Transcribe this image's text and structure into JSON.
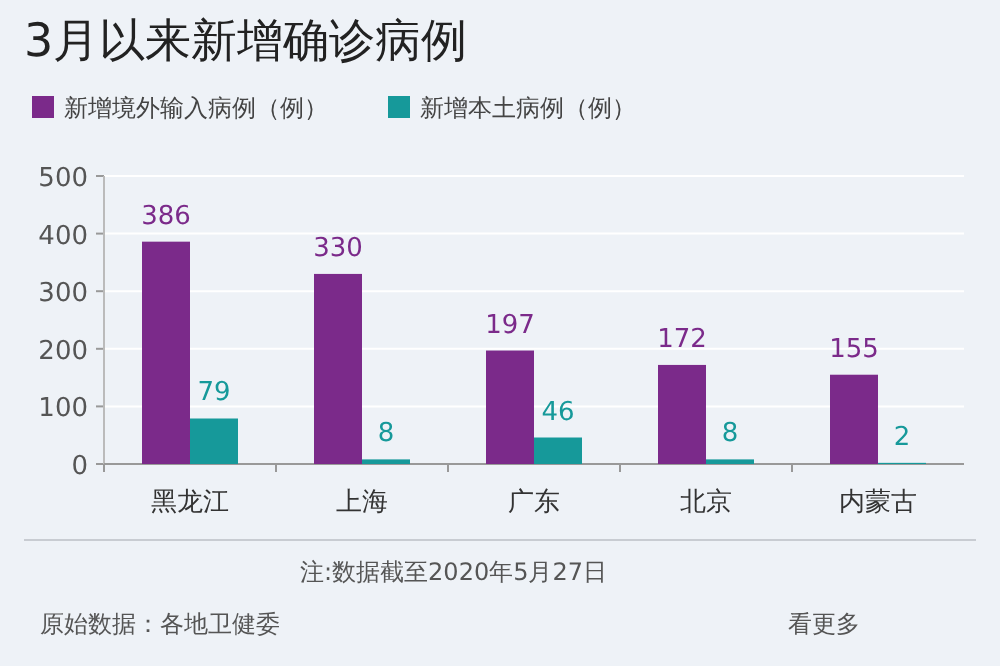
{
  "chart_data": {
    "type": "bar",
    "title": "3月以来新增确诊病例",
    "categories": [
      "黑龙江",
      "上海",
      "广东",
      "北京",
      "内蒙古"
    ],
    "series": [
      {
        "name": "新增境外输入病例（例）",
        "color": "#7b2a8a",
        "values": [
          386,
          330,
          197,
          172,
          155
        ]
      },
      {
        "name": "新增本土病例（例）",
        "color": "#16999a",
        "values": [
          79,
          8,
          46,
          8,
          2
        ]
      }
    ],
    "ylim": [
      0,
      500
    ],
    "yticks": [
      0,
      100,
      200,
      300,
      400,
      500
    ],
    "grid": "y",
    "legend": "top left",
    "data_labels": true,
    "annotations": [
      "注:数据截至2020年5月27日",
      "原始数据：各地卫健委",
      "看更多"
    ]
  }
}
